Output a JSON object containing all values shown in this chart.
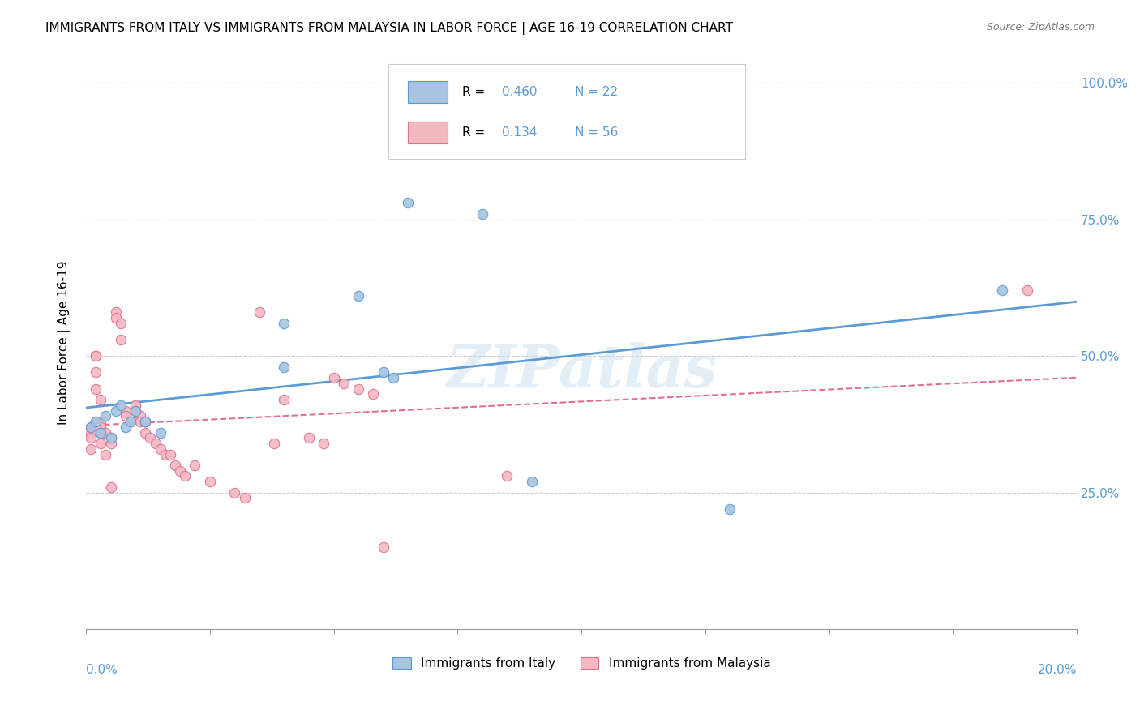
{
  "title": "IMMIGRANTS FROM ITALY VS IMMIGRANTS FROM MALAYSIA IN LABOR FORCE | AGE 16-19 CORRELATION CHART",
  "source": "Source: ZipAtlas.com",
  "ylabel": "In Labor Force | Age 16-19",
  "yticks": [
    0.25,
    0.5,
    0.75,
    1.0
  ],
  "ytick_labels": [
    "25.0%",
    "50.0%",
    "75.0%",
    "100.0%"
  ],
  "xlim": [
    0.0,
    0.2
  ],
  "ylim": [
    0.0,
    1.05
  ],
  "legend_label1": "Immigrants from Italy",
  "legend_label2": "Immigrants from Malaysia",
  "R_italy": 0.46,
  "N_italy": 22,
  "R_malaysia": 0.134,
  "N_malaysia": 56,
  "watermark": "ZIPatlas",
  "blue_color": "#a8c4e0",
  "blue_line_color": "#5b9bd5",
  "pink_color": "#f4b8c1",
  "pink_line_color": "#e07090",
  "italy_x": [
    0.001,
    0.002,
    0.003,
    0.004,
    0.005,
    0.006,
    0.007,
    0.008,
    0.009,
    0.01,
    0.012,
    0.015,
    0.04,
    0.04,
    0.055,
    0.06,
    0.062,
    0.065,
    0.08,
    0.09,
    0.13,
    0.185
  ],
  "italy_y": [
    0.37,
    0.38,
    0.36,
    0.39,
    0.35,
    0.4,
    0.41,
    0.37,
    0.38,
    0.4,
    0.38,
    0.36,
    0.56,
    0.48,
    0.61,
    0.47,
    0.46,
    0.78,
    0.76,
    0.27,
    0.22,
    0.62
  ],
  "malaysia_x": [
    0.001,
    0.001,
    0.001,
    0.001,
    0.002,
    0.002,
    0.002,
    0.002,
    0.002,
    0.003,
    0.003,
    0.003,
    0.003,
    0.003,
    0.004,
    0.004,
    0.005,
    0.005,
    0.005,
    0.006,
    0.006,
    0.007,
    0.007,
    0.008,
    0.008,
    0.009,
    0.01,
    0.01,
    0.011,
    0.011,
    0.012,
    0.012,
    0.013,
    0.014,
    0.015,
    0.016,
    0.017,
    0.018,
    0.019,
    0.02,
    0.022,
    0.025,
    0.03,
    0.032,
    0.035,
    0.038,
    0.04,
    0.045,
    0.048,
    0.05,
    0.052,
    0.055,
    0.058,
    0.06,
    0.085,
    0.19
  ],
  "malaysia_y": [
    0.37,
    0.36,
    0.35,
    0.33,
    0.38,
    0.5,
    0.5,
    0.47,
    0.44,
    0.42,
    0.38,
    0.37,
    0.36,
    0.34,
    0.36,
    0.32,
    0.35,
    0.34,
    0.26,
    0.58,
    0.57,
    0.56,
    0.53,
    0.4,
    0.39,
    0.38,
    0.41,
    0.4,
    0.39,
    0.38,
    0.38,
    0.36,
    0.35,
    0.34,
    0.33,
    0.32,
    0.32,
    0.3,
    0.29,
    0.28,
    0.3,
    0.27,
    0.25,
    0.24,
    0.58,
    0.34,
    0.42,
    0.35,
    0.34,
    0.46,
    0.45,
    0.44,
    0.43,
    0.15,
    0.28,
    0.62
  ]
}
